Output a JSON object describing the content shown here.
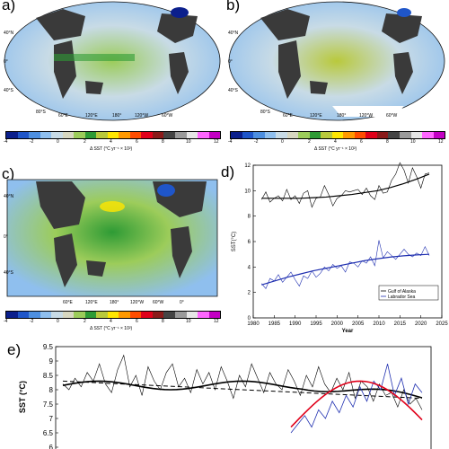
{
  "panels": [
    {
      "label": "a)",
      "lat_labels": [
        "40°N",
        "0°",
        "40°S",
        "80°S"
      ],
      "lon_labels": [
        "60°E",
        "120°E",
        "180°",
        "120°W",
        "60°W"
      ]
    },
    {
      "label": "b)",
      "lat_labels": [
        "40°N",
        "0°",
        "40°S",
        "80°S"
      ],
      "lon_labels": [
        "60°E",
        "120°E",
        "180°",
        "120°W",
        "60°W"
      ]
    },
    {
      "label": "c)",
      "lat_labels": [
        "40°N",
        "0°",
        "40°S"
      ],
      "lon_labels": [
        "60°E",
        "120°E",
        "180°",
        "120°W",
        "60°W",
        "0°"
      ]
    }
  ],
  "colorbar": {
    "ticks": [
      "-4",
      "-2",
      "0",
      "2",
      "4",
      "6",
      "8",
      "10",
      "12"
    ],
    "label": "Δ SST (°C yr⁻¹ × 10²)",
    "colors": [
      "#0b1f8c",
      "#1f56c9",
      "#4d8fe0",
      "#8fbfee",
      "#c8dbe6",
      "#d7d7c0",
      "#9ccc5a",
      "#2e9b35",
      "#b9c93c",
      "#ffe600",
      "#ff9900",
      "#ff4d00",
      "#e0001a",
      "#8a1a1a",
      "#444444",
      "#9a9a9a",
      "#e6e6e6",
      "#ff66ff",
      "#c300c3"
    ]
  },
  "chart_data": [
    {
      "panel": "d)",
      "type": "line",
      "xlabel": "Year",
      "ylabel": "SST(°C)",
      "xlim": [
        1980,
        2025
      ],
      "ylim": [
        0,
        12
      ],
      "xticks": [
        "1980",
        "1985",
        "1990",
        "1995",
        "2000",
        "2005",
        "2010",
        "2015",
        "2020",
        "2025"
      ],
      "yticks": [
        "0",
        "2",
        "4",
        "6",
        "8",
        "10",
        "12"
      ],
      "legend_position": "bottom-right",
      "series": [
        {
          "name": "Gulf of Alaska",
          "color": "#000000",
          "x": [
            1982,
            1983,
            1984,
            1985,
            1986,
            1987,
            1988,
            1989,
            1990,
            1991,
            1992,
            1993,
            1994,
            1995,
            1996,
            1997,
            1998,
            1999,
            2000,
            2001,
            2002,
            2003,
            2004,
            2005,
            2006,
            2007,
            2008,
            2009,
            2010,
            2011,
            2012,
            2013,
            2014,
            2015,
            2016,
            2017,
            2018,
            2019,
            2020,
            2021,
            2022
          ],
          "y": [
            9.3,
            9.9,
            9.1,
            9.4,
            9.6,
            9.2,
            10.1,
            9.3,
            9.6,
            9.0,
            9.8,
            10.0,
            8.7,
            9.4,
            9.5,
            10.4,
            9.7,
            8.8,
            9.4,
            9.6,
            10.0,
            9.9,
            10.0,
            10.1,
            9.7,
            10.2,
            9.6,
            9.3,
            10.4,
            9.8,
            9.9,
            10.8,
            11.3,
            12.2,
            11.6,
            10.6,
            11.8,
            11.1,
            10.2,
            11.3,
            11.4
          ],
          "trend": [
            9.4,
            9.4,
            9.4,
            9.4,
            9.45,
            9.5,
            9.6,
            9.7,
            9.85,
            10.0,
            10.25,
            10.55,
            10.9,
            11.3
          ]
        },
        {
          "name": "Labrador Sea",
          "color": "#1f2fb0",
          "x": [
            1982,
            1983,
            1984,
            1985,
            1986,
            1987,
            1988,
            1989,
            1990,
            1991,
            1992,
            1993,
            1994,
            1995,
            1996,
            1997,
            1998,
            1999,
            2000,
            2001,
            2002,
            2003,
            2004,
            2005,
            2006,
            2007,
            2008,
            2009,
            2010,
            2011,
            2012,
            2013,
            2014,
            2015,
            2016,
            2017,
            2018,
            2019,
            2020,
            2021,
            2022
          ],
          "y": [
            2.7,
            2.3,
            3.1,
            2.9,
            3.4,
            2.8,
            3.2,
            3.6,
            3.0,
            2.5,
            3.3,
            3.1,
            3.7,
            3.2,
            3.5,
            4.0,
            3.7,
            4.2,
            3.9,
            4.1,
            3.6,
            4.4,
            4.3,
            4.0,
            4.5,
            4.3,
            4.8,
            4.1,
            6.1,
            4.7,
            5.2,
            4.9,
            4.6,
            5.0,
            5.4,
            5.0,
            4.8,
            5.1,
            4.9,
            5.6,
            4.9
          ],
          "trend": [
            2.6,
            2.9,
            3.2,
            3.45,
            3.7,
            3.9,
            4.1,
            4.3,
            4.5,
            4.65,
            4.78,
            4.88,
            4.95,
            5.0
          ]
        }
      ]
    },
    {
      "panel": "e)",
      "type": "line",
      "ylabel": "SST (°C)",
      "ylim": [
        6,
        9.5
      ],
      "yticks": [
        "6",
        "6.5",
        "7",
        "7.5",
        "8",
        "8.5",
        "9",
        "9.5"
      ],
      "series": [
        {
          "name": "",
          "color": "#000000",
          "y": [
            8.2,
            8.0,
            8.4,
            8.1,
            8.6,
            8.3,
            8.9,
            8.2,
            7.9,
            8.7,
            9.2,
            8.1,
            8.5,
            7.8,
            8.8,
            8.3,
            8.0,
            8.6,
            8.9,
            8.1,
            8.4,
            7.9,
            8.7,
            8.2,
            8.6,
            8.0,
            8.8,
            8.3,
            7.7,
            8.5,
            8.1,
            8.9,
            8.4,
            7.9,
            8.6,
            8.2,
            8.0,
            8.7,
            8.3,
            7.8,
            8.5,
            8.1,
            8.8,
            8.2,
            7.9,
            8.4,
            8.0,
            8.6,
            7.7,
            8.3,
            8.1,
            7.6,
            8.2,
            7.8,
            7.9,
            7.4,
            8.0,
            7.5,
            7.7,
            7.3
          ]
        },
        {
          "name": "",
          "color": "#1f2fb0",
          "y": [
            6.5,
            6.8,
            7.1,
            6.7,
            7.3,
            7.0,
            7.6,
            7.2,
            7.8,
            7.4,
            8.1,
            7.6,
            8.3,
            8.0,
            8.9,
            7.8,
            8.4,
            7.5,
            8.2,
            7.9
          ]
        }
      ]
    }
  ]
}
